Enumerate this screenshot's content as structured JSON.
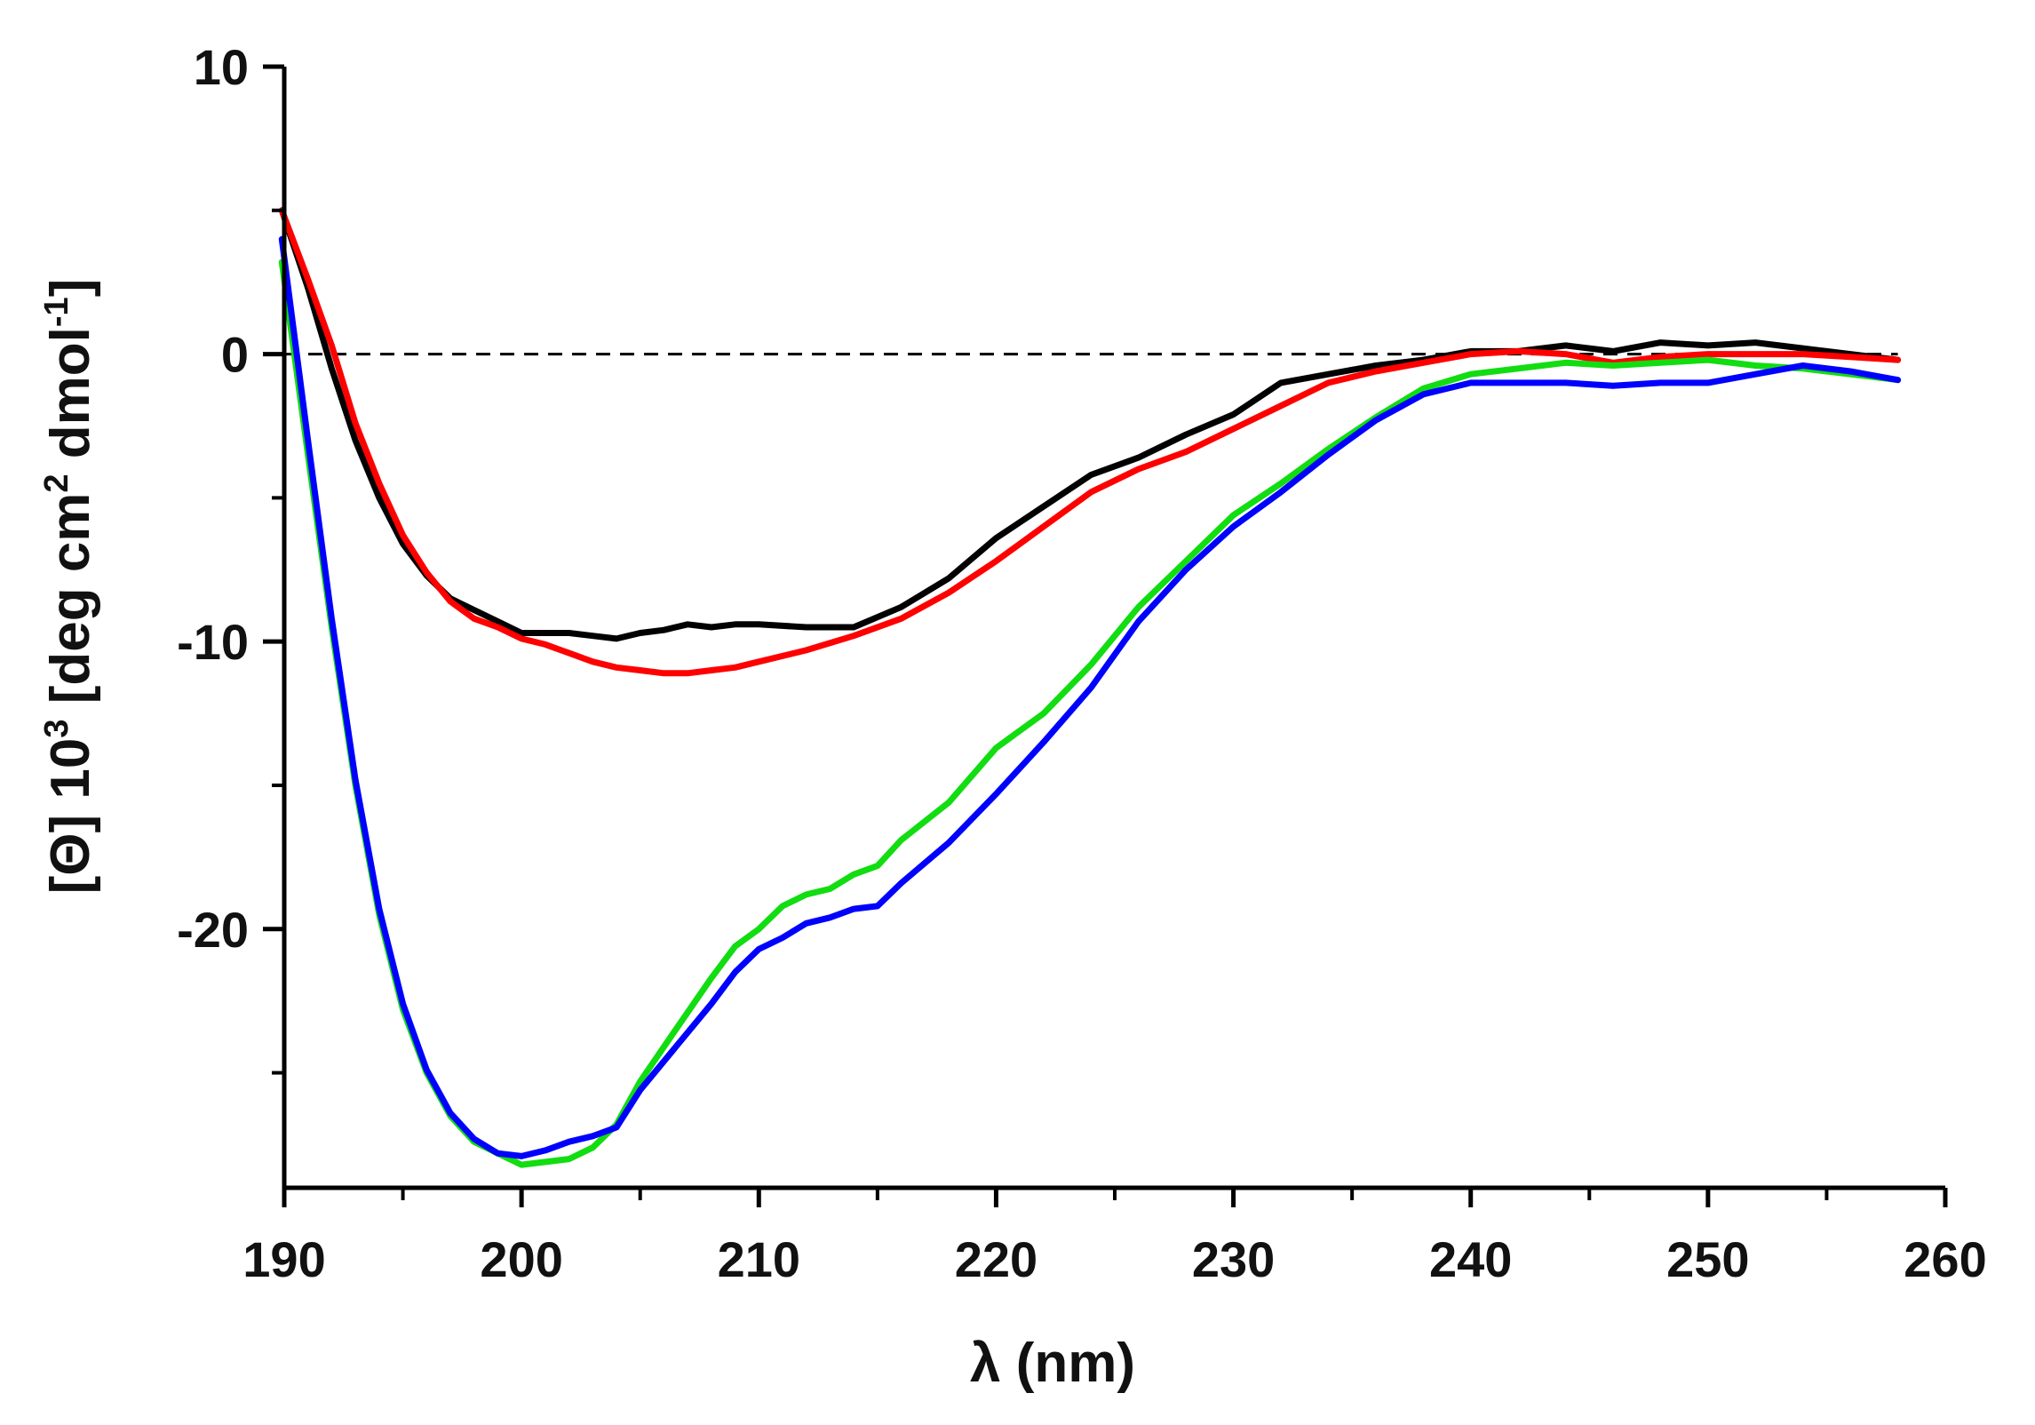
{
  "chart_data": {
    "type": "line",
    "title": "",
    "xlabel": "λ (nm)",
    "ylabel_parts": {
      "main": "[Θ] 10",
      "sup1": "3",
      "mid": " [deg cm",
      "sup2": "2",
      "mid2": " dmol",
      "sup3": "-1",
      "end": "]"
    },
    "xlim": [
      190,
      260
    ],
    "ylim": [
      -29,
      10
    ],
    "x_ticks": [
      190,
      200,
      210,
      220,
      230,
      240,
      250,
      260
    ],
    "y_ticks": [
      10,
      0,
      -10,
      -20
    ],
    "x_tick_labels": [
      "190",
      "200",
      "210",
      "220",
      "230",
      "240",
      "250",
      "260"
    ],
    "y_tick_labels": [
      "10",
      "0",
      "-10",
      "-20"
    ],
    "reference_line": {
      "y": 0,
      "style": "dashed"
    },
    "series": [
      {
        "name": "black",
        "color": "#000000",
        "x": [
          189.9,
          191,
          192,
          193,
          194,
          195,
          196,
          197,
          198,
          199,
          200,
          201,
          202,
          203,
          204,
          205,
          206,
          207,
          208,
          209,
          210,
          212,
          214,
          216,
          218,
          220,
          222,
          224,
          226,
          228,
          230,
          232,
          234,
          236,
          238,
          240,
          242,
          244,
          246,
          248,
          250,
          252,
          254,
          256,
          258
        ],
        "y": [
          5.0,
          2.3,
          -0.5,
          -3.0,
          -5.0,
          -6.6,
          -7.7,
          -8.5,
          -8.9,
          -9.3,
          -9.7,
          -9.7,
          -9.7,
          -9.8,
          -9.9,
          -9.7,
          -9.6,
          -9.4,
          -9.5,
          -9.4,
          -9.4,
          -9.5,
          -9.5,
          -8.8,
          -7.8,
          -6.4,
          -5.3,
          -4.2,
          -3.6,
          -2.8,
          -2.1,
          -1.0,
          -0.7,
          -0.4,
          -0.2,
          0.1,
          0.1,
          0.3,
          0.1,
          0.4,
          0.3,
          0.4,
          0.2,
          0.0,
          -0.2
        ]
      },
      {
        "name": "red",
        "color": "#ff0000",
        "x": [
          189.9,
          191,
          192,
          193,
          194,
          195,
          196,
          197,
          198,
          199,
          200,
          201,
          202,
          203,
          204,
          205,
          206,
          207,
          208,
          209,
          210,
          212,
          214,
          216,
          218,
          220,
          222,
          224,
          226,
          228,
          230,
          232,
          234,
          236,
          238,
          240,
          242,
          244,
          246,
          248,
          250,
          252,
          254,
          256,
          258
        ],
        "y": [
          5.0,
          2.6,
          0.3,
          -2.4,
          -4.5,
          -6.3,
          -7.6,
          -8.6,
          -9.2,
          -9.5,
          -9.9,
          -10.1,
          -10.4,
          -10.7,
          -10.9,
          -11.0,
          -11.1,
          -11.1,
          -11.0,
          -10.9,
          -10.7,
          -10.3,
          -9.8,
          -9.2,
          -8.3,
          -7.2,
          -6.0,
          -4.8,
          -4.0,
          -3.4,
          -2.6,
          -1.8,
          -1.0,
          -0.6,
          -0.3,
          0.0,
          0.1,
          0.0,
          -0.3,
          -0.1,
          0.0,
          0.0,
          0.0,
          -0.1,
          -0.2
        ]
      },
      {
        "name": "green",
        "color": "#11dd11",
        "x": [
          189.9,
          191,
          192,
          193,
          194,
          195,
          196,
          197,
          198,
          199,
          200,
          201,
          202,
          203,
          204,
          205,
          206,
          207,
          208,
          209,
          210,
          211,
          212,
          213,
          214,
          215,
          216,
          218,
          220,
          222,
          224,
          226,
          228,
          230,
          232,
          234,
          236,
          238,
          240,
          242,
          244,
          246,
          248,
          250,
          252,
          254,
          256,
          258
        ],
        "y": [
          3.2,
          -3.5,
          -9.5,
          -15.0,
          -19.5,
          -22.8,
          -25.0,
          -26.5,
          -27.4,
          -27.8,
          -28.2,
          -28.1,
          -28.0,
          -27.6,
          -26.8,
          -25.3,
          -24.1,
          -22.9,
          -21.7,
          -20.6,
          -20.0,
          -19.2,
          -18.8,
          -18.6,
          -18.1,
          -17.8,
          -16.9,
          -15.6,
          -13.7,
          -12.5,
          -10.8,
          -8.8,
          -7.2,
          -5.6,
          -4.5,
          -3.3,
          -2.2,
          -1.2,
          -0.7,
          -0.5,
          -0.3,
          -0.4,
          -0.3,
          -0.2,
          -0.4,
          -0.5,
          -0.7,
          -0.9
        ]
      },
      {
        "name": "blue",
        "color": "#0000ff",
        "x": [
          189.9,
          191,
          192,
          193,
          194,
          195,
          196,
          197,
          198,
          199,
          200,
          201,
          202,
          203,
          204,
          205,
          206,
          207,
          208,
          209,
          210,
          211,
          212,
          213,
          214,
          215,
          216,
          218,
          220,
          222,
          224,
          226,
          228,
          230,
          232,
          234,
          236,
          238,
          240,
          242,
          244,
          246,
          248,
          250,
          252,
          254,
          256,
          258
        ],
        "y": [
          4.0,
          -3.0,
          -9.2,
          -14.8,
          -19.3,
          -22.6,
          -24.9,
          -26.4,
          -27.3,
          -27.8,
          -27.9,
          -27.7,
          -27.4,
          -27.2,
          -26.9,
          -25.6,
          -24.6,
          -23.6,
          -22.6,
          -21.5,
          -20.7,
          -20.3,
          -19.8,
          -19.6,
          -19.3,
          -19.2,
          -18.4,
          -17.0,
          -15.3,
          -13.5,
          -11.6,
          -9.3,
          -7.5,
          -6.0,
          -4.8,
          -3.5,
          -2.3,
          -1.4,
          -1.0,
          -1.0,
          -1.0,
          -1.1,
          -1.0,
          -1.0,
          -0.7,
          -0.4,
          -0.6,
          -0.9
        ]
      }
    ]
  }
}
